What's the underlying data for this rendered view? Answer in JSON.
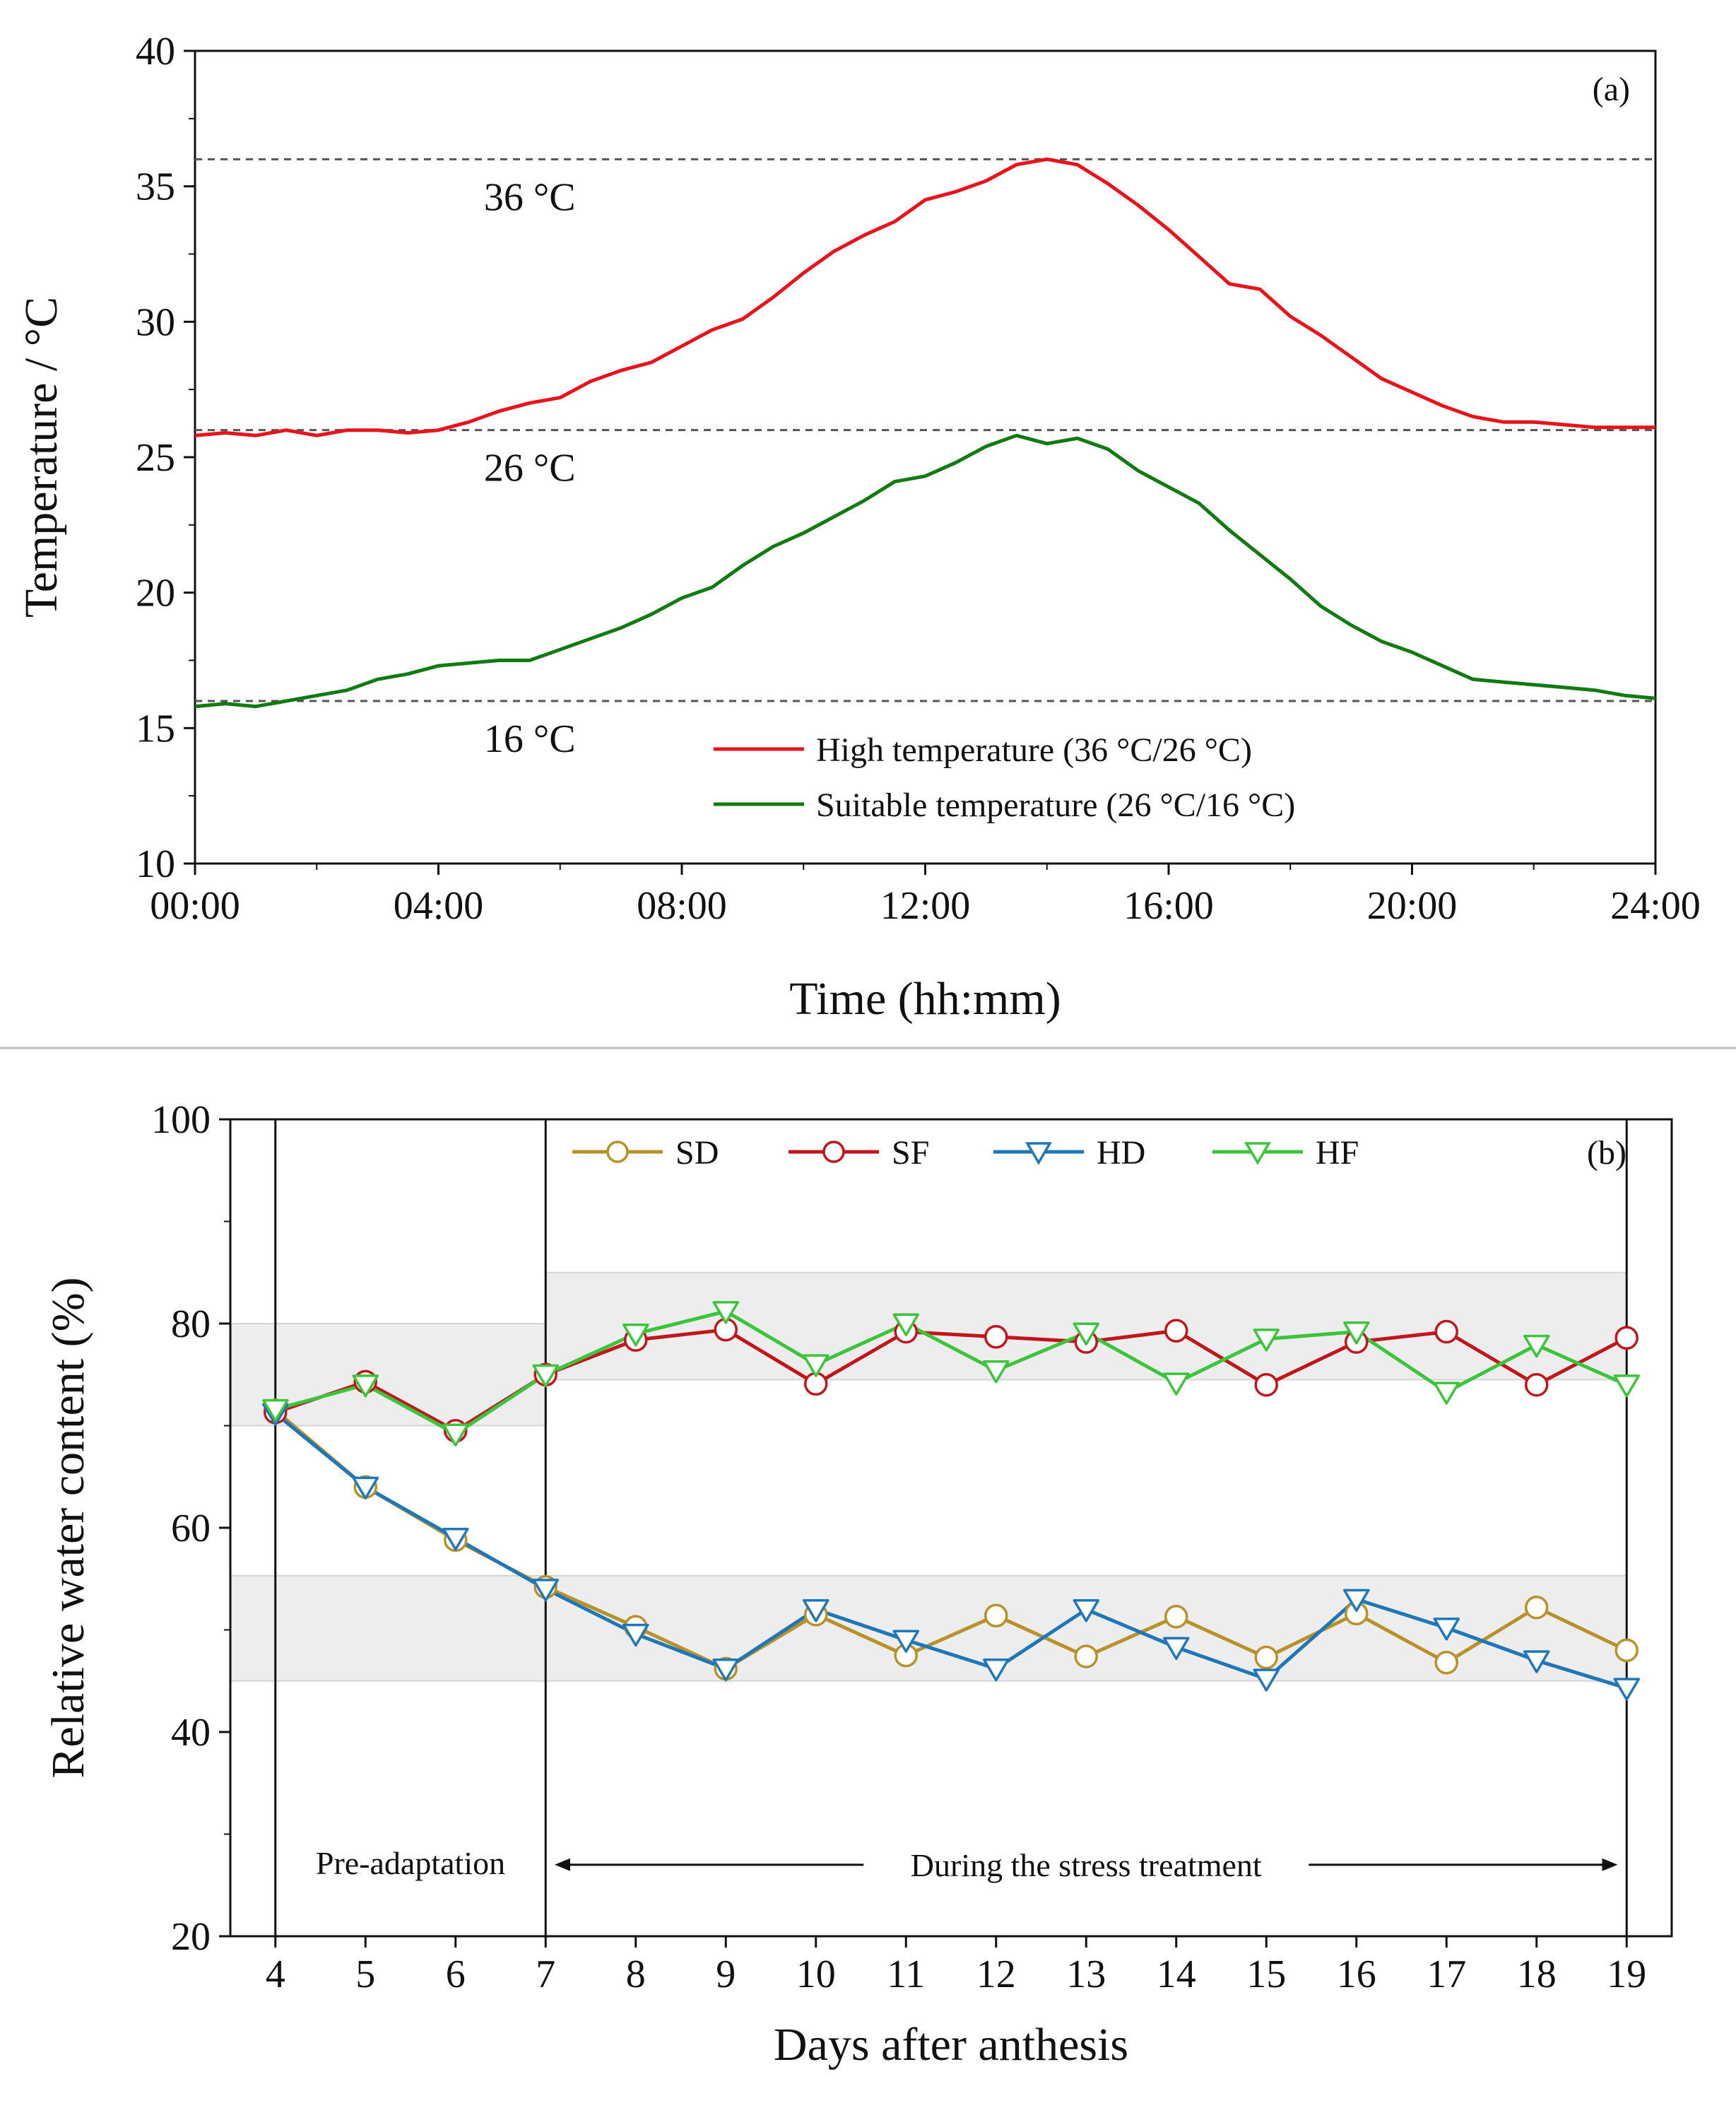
{
  "chart_data": [
    {
      "type": "line",
      "panel": "(a)",
      "xlabel": "Time (hh:mm)",
      "ylabel": "Temperature / °C",
      "xlim": [
        0,
        24
      ],
      "ylim": [
        10,
        40
      ],
      "x_ticks": [
        0,
        4,
        8,
        12,
        16,
        20,
        24
      ],
      "x_tick_labels": [
        "00:00",
        "04:00",
        "08:00",
        "12:00",
        "16:00",
        "20:00",
        "24:00"
      ],
      "y_ticks": [
        10,
        15,
        20,
        25,
        30,
        35,
        40
      ],
      "y_tick_labels": [
        "10",
        "15",
        "20",
        "25",
        "30",
        "35",
        "40"
      ],
      "reference_lines": [
        {
          "value": 36,
          "label": "36 °C",
          "label_x": 5.5
        },
        {
          "value": 26,
          "label": "26 °C",
          "label_x": 5.5
        },
        {
          "value": 16,
          "label": "16 °C",
          "label_x": 5.5
        }
      ],
      "legend": "bottom-center",
      "series": [
        {
          "name": "High temperature (36 °C/26 °C)",
          "color": "#e8141c",
          "x": [
            0,
            0.5,
            1,
            1.5,
            2,
            2.5,
            3,
            3.5,
            4,
            4.5,
            5,
            5.5,
            6,
            6.5,
            7,
            7.5,
            8,
            8.5,
            9,
            9.5,
            10,
            10.5,
            11,
            11.5,
            12,
            12.5,
            13,
            13.5,
            14,
            14.5,
            15,
            15.5,
            16,
            16.5,
            17,
            17.5,
            18,
            18.5,
            19,
            19.5,
            20,
            20.5,
            21,
            21.5,
            22,
            22.5,
            23,
            23.5,
            24
          ],
          "values": [
            25.8,
            25.9,
            25.8,
            26.0,
            25.8,
            26.0,
            26.0,
            25.9,
            26.0,
            26.3,
            26.7,
            27.0,
            27.2,
            27.8,
            28.2,
            28.5,
            29.1,
            29.7,
            30.1,
            30.9,
            31.8,
            32.6,
            33.2,
            33.7,
            34.5,
            34.8,
            35.2,
            35.8,
            36.0,
            35.8,
            35.1,
            34.3,
            33.4,
            32.4,
            31.4,
            31.2,
            30.2,
            29.5,
            28.7,
            27.9,
            27.4,
            26.9,
            26.5,
            26.3,
            26.3,
            26.2,
            26.1,
            26.1,
            26.1
          ]
        },
        {
          "name": "Suitable temperature (26 °C/16 °C)",
          "color": "#117a11",
          "x": [
            0,
            0.5,
            1,
            1.5,
            2,
            2.5,
            3,
            3.5,
            4,
            4.5,
            5,
            5.5,
            6,
            6.5,
            7,
            7.5,
            8,
            8.5,
            9,
            9.5,
            10,
            10.5,
            11,
            11.5,
            12,
            12.5,
            13,
            13.5,
            14,
            14.5,
            15,
            15.5,
            16,
            16.5,
            17,
            17.5,
            18,
            18.5,
            19,
            19.5,
            20,
            20.5,
            21,
            21.5,
            22,
            22.5,
            23,
            23.5,
            24
          ],
          "values": [
            15.8,
            15.9,
            15.8,
            16.0,
            16.2,
            16.4,
            16.8,
            17.0,
            17.3,
            17.4,
            17.5,
            17.5,
            17.9,
            18.3,
            18.7,
            19.2,
            19.8,
            20.2,
            21.0,
            21.7,
            22.2,
            22.8,
            23.4,
            24.1,
            24.3,
            24.8,
            25.4,
            25.8,
            25.5,
            25.7,
            25.3,
            24.5,
            23.9,
            23.3,
            22.3,
            21.4,
            20.5,
            19.5,
            18.8,
            18.2,
            17.8,
            17.3,
            16.8,
            16.7,
            16.6,
            16.5,
            16.4,
            16.2,
            16.1
          ]
        }
      ]
    },
    {
      "type": "line",
      "panel": "(b)",
      "xlabel": "Days after anthesis",
      "ylabel": "Relative water content (%)",
      "xlim": [
        3.5,
        19.5
      ],
      "ylim": [
        20,
        100
      ],
      "x_ticks": [
        4,
        5,
        6,
        7,
        8,
        9,
        10,
        11,
        12,
        13,
        14,
        15,
        16,
        17,
        18,
        19
      ],
      "x_tick_labels": [
        "4",
        "5",
        "6",
        "7",
        "8",
        "9",
        "10",
        "11",
        "12",
        "13",
        "14",
        "15",
        "16",
        "17",
        "18",
        "19"
      ],
      "y_ticks": [
        20,
        40,
        60,
        80,
        100
      ],
      "y_tick_labels": [
        "20",
        "40",
        "60",
        "80",
        "100"
      ],
      "vertical_lines": [
        4,
        7,
        19
      ],
      "shaded_bands": [
        {
          "x": [
            3.5,
            7
          ],
          "y": [
            70,
            80
          ]
        },
        {
          "x": [
            7,
            19
          ],
          "y": [
            74.5,
            85
          ]
        },
        {
          "x": [
            3.5,
            19
          ],
          "y": [
            45,
            55.3
          ]
        }
      ],
      "annotations": [
        {
          "text": "Pre-adaptation",
          "x": 5.5,
          "y": 27.2
        },
        {
          "text": "During the stress treatment",
          "x": 13,
          "y": 27.0,
          "arrow_from": 7.1,
          "arrow_to": 18.9
        }
      ],
      "legend": "top",
      "x": [
        4,
        5,
        6,
        7,
        8,
        9,
        10,
        11,
        12,
        13,
        14,
        15,
        16,
        17,
        18,
        19
      ],
      "series": [
        {
          "name": "SD",
          "color": "#b8912a",
          "marker": "circle",
          "values": [
            71.5,
            64.0,
            58.8,
            54.2,
            50.3,
            46.2,
            51.5,
            47.5,
            51.4,
            47.4,
            51.3,
            47.3,
            51.6,
            46.8,
            52.2,
            48.0
          ]
        },
        {
          "name": "SF",
          "color": "#c0171c",
          "marker": "circle",
          "values": [
            71.3,
            74.3,
            69.5,
            75.0,
            78.4,
            79.4,
            74.1,
            79.2,
            78.7,
            78.2,
            79.3,
            74.0,
            78.2,
            79.2,
            74.0,
            78.6
          ]
        },
        {
          "name": "HD",
          "color": "#1f77b8",
          "marker": "triangle-down",
          "values": [
            71.2,
            64.0,
            59.0,
            54.0,
            49.6,
            46.2,
            52.0,
            49.0,
            46.2,
            52.0,
            48.3,
            45.2,
            53.0,
            50.2,
            47.0,
            44.3
          ]
        },
        {
          "name": "HF",
          "color": "#3cc43c",
          "marker": "triangle-down",
          "values": [
            71.6,
            74.0,
            69.2,
            75.0,
            79.0,
            81.2,
            76.0,
            80.0,
            75.4,
            79.1,
            74.2,
            78.5,
            79.2,
            73.3,
            77.9,
            74.0
          ]
        }
      ]
    }
  ]
}
